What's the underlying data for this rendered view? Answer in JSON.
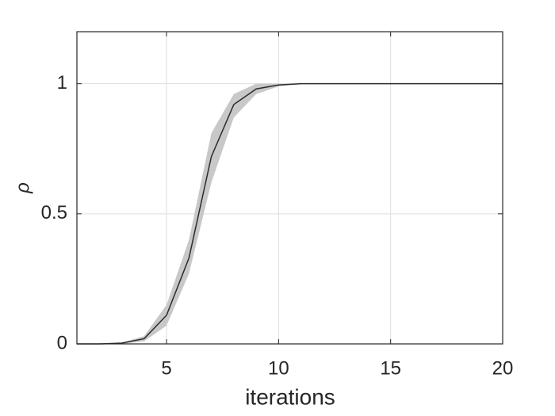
{
  "chart_data": {
    "type": "line",
    "x": [
      1,
      2,
      3,
      4,
      5,
      6,
      7,
      8,
      9,
      10,
      11,
      12,
      13,
      14,
      15,
      16,
      17,
      18,
      19,
      20
    ],
    "series": [
      {
        "color": "#2b2b2b",
        "band_color": "#c8c8c8",
        "values": [
          0,
          0,
          0.003,
          0.02,
          0.11,
          0.33,
          0.72,
          0.92,
          0.98,
          0.995,
          1,
          1,
          1,
          1,
          1,
          1,
          1,
          1,
          1,
          1
        ],
        "lower": [
          0,
          0,
          0,
          0.01,
          0.07,
          0.27,
          0.62,
          0.87,
          0.96,
          0.99,
          1,
          1,
          1,
          1,
          1,
          1,
          1,
          1,
          1,
          1
        ],
        "upper": [
          0,
          0,
          0.005,
          0.03,
          0.15,
          0.4,
          0.81,
          0.96,
          1,
          1,
          1,
          1,
          1,
          1,
          1,
          1,
          1,
          1,
          1,
          1
        ]
      }
    ],
    "xlim": [
      1,
      20
    ],
    "ylim": [
      0,
      1.2
    ],
    "xticks": [
      5,
      10,
      15,
      20
    ],
    "yticks": [
      0,
      0.5,
      1
    ],
    "xlabel": "iterations",
    "ylabel": "ρ",
    "grid": true
  }
}
